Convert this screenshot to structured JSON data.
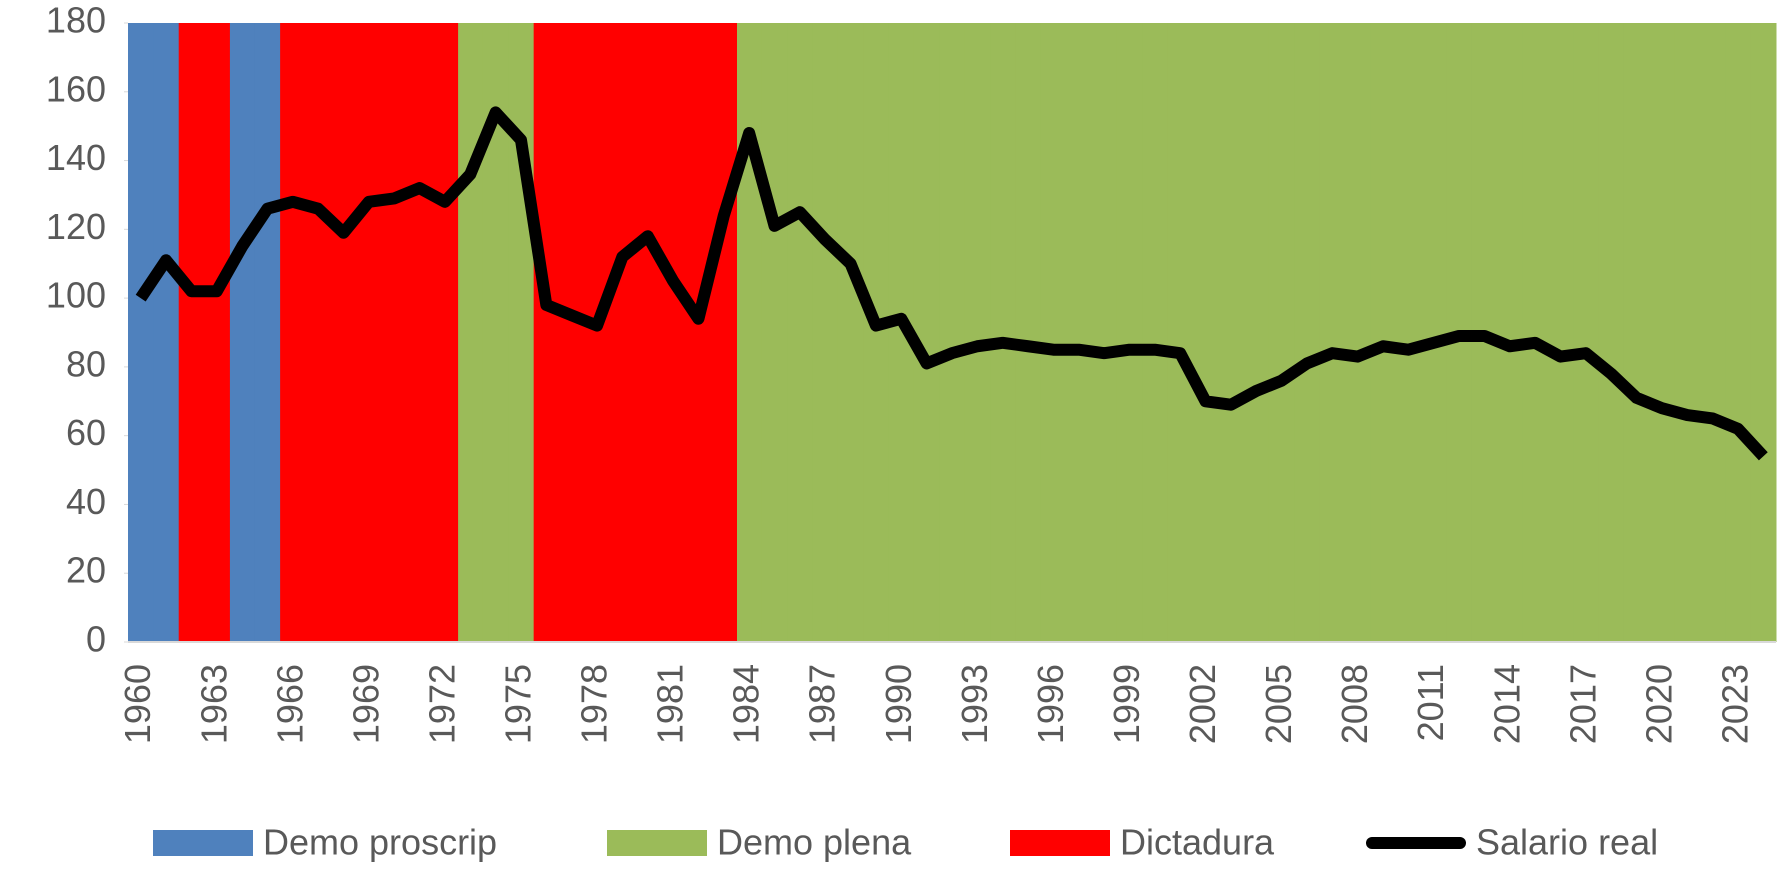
{
  "chart_data": {
    "type": "bar",
    "categories": [
      "1960",
      null,
      null,
      "1963",
      null,
      null,
      "1966",
      null,
      null,
      "1969",
      null,
      null,
      "1972",
      null,
      null,
      "1975",
      null,
      null,
      "1978",
      null,
      null,
      "1981",
      null,
      null,
      "1984",
      null,
      null,
      "1987",
      null,
      null,
      "1990",
      null,
      null,
      "1993",
      null,
      null,
      "1996",
      null,
      null,
      "1999",
      null,
      null,
      "2002",
      null,
      null,
      "2005",
      null,
      null,
      "2008",
      null,
      null,
      "2011",
      null,
      null,
      "2014",
      null,
      null,
      "2017",
      null,
      null,
      "2020",
      null,
      null,
      "2023",
      null
    ],
    "series": [
      {
        "name": "Demo proscrip",
        "type": "bar",
        "color": "#4f81bd",
        "values": [
          180,
          180,
          null,
          null,
          180,
          180,
          null,
          null,
          null,
          null,
          null,
          null,
          null,
          null,
          null,
          null,
          null,
          null,
          null,
          null,
          null,
          null,
          null,
          null,
          null,
          null,
          null,
          null,
          null,
          null,
          null,
          null,
          null,
          null,
          null,
          null,
          null,
          null,
          null,
          null,
          null,
          null,
          null,
          null,
          null,
          null,
          null,
          null,
          null,
          null,
          null,
          null,
          null,
          null,
          null,
          null,
          null,
          null,
          null,
          null,
          null,
          null,
          null,
          null,
          null
        ]
      },
      {
        "name": "Demo plena",
        "type": "bar",
        "color": "#9bbb59",
        "values": [
          null,
          null,
          null,
          null,
          null,
          null,
          null,
          null,
          null,
          null,
          null,
          null,
          null,
          180,
          180,
          180,
          null,
          null,
          null,
          null,
          null,
          null,
          null,
          null,
          180,
          180,
          180,
          180,
          180,
          180,
          180,
          180,
          180,
          180,
          180,
          180,
          180,
          180,
          180,
          180,
          180,
          180,
          180,
          180,
          180,
          180,
          180,
          180,
          180,
          180,
          180,
          180,
          180,
          180,
          180,
          180,
          180,
          180,
          180,
          180,
          180,
          180,
          180,
          180,
          180
        ]
      },
      {
        "name": "Dictadura",
        "type": "bar",
        "color": "#ff0000",
        "values": [
          null,
          null,
          180,
          180,
          null,
          null,
          180,
          180,
          180,
          180,
          180,
          180,
          180,
          null,
          null,
          null,
          180,
          180,
          180,
          180,
          180,
          180,
          180,
          180,
          null,
          null,
          null,
          null,
          null,
          null,
          null,
          null,
          null,
          null,
          null,
          null,
          null,
          null,
          null,
          null,
          null,
          null,
          null,
          null,
          null,
          null,
          null,
          null,
          null,
          null,
          null,
          null,
          null,
          null,
          null,
          null,
          null,
          null,
          null,
          null,
          null,
          null,
          null,
          null,
          null
        ]
      },
      {
        "name": "Salario real",
        "type": "line",
        "color": "#000000",
        "values": [
          100,
          111,
          102,
          102,
          115,
          126,
          128,
          126,
          119,
          128,
          129,
          132,
          128,
          136,
          154,
          146,
          98,
          95,
          92,
          112,
          118,
          105,
          94,
          124,
          148,
          121,
          125,
          117,
          110,
          92,
          94,
          81,
          84,
          86,
          87,
          86,
          85,
          85,
          84,
          85,
          85,
          84,
          70,
          69,
          73,
          76,
          81,
          84,
          83,
          86,
          85,
          87,
          89,
          89,
          86,
          87,
          83,
          84,
          78,
          71,
          68,
          66,
          65,
          62,
          54
        ]
      }
    ],
    "ylim": [
      0,
      180
    ],
    "yticks": [
      0,
      20,
      40,
      60,
      80,
      100,
      120,
      140,
      160,
      180
    ]
  }
}
